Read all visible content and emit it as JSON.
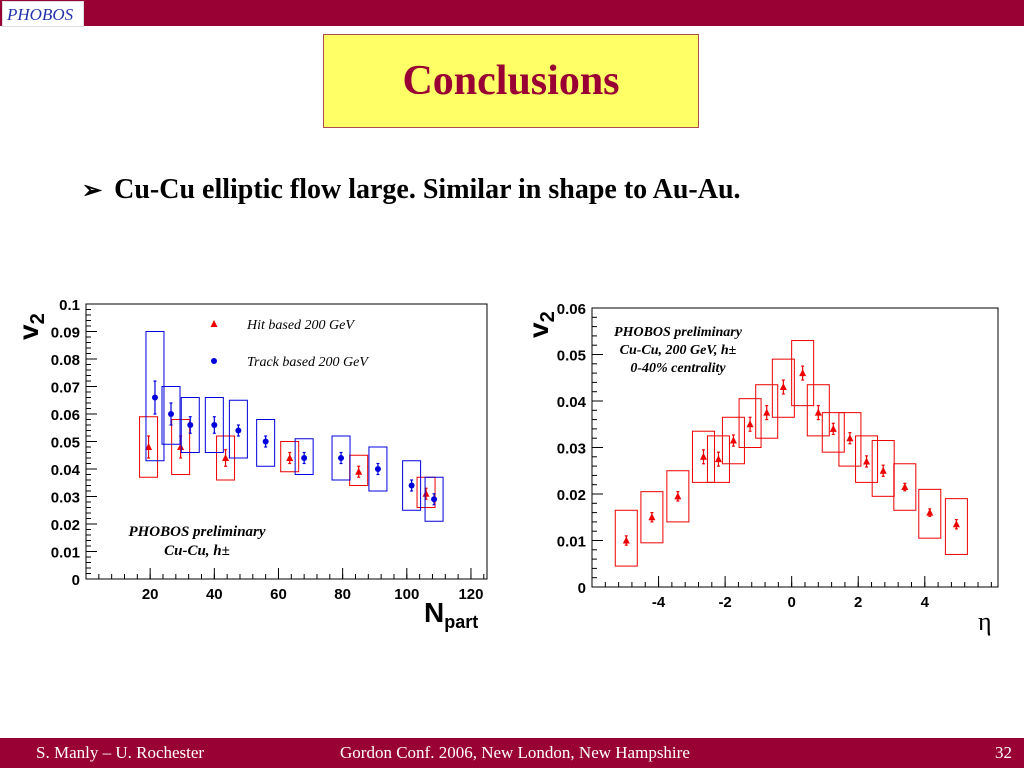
{
  "slide": {
    "logo_text": "PHOBOS",
    "title": "Conclusions",
    "bullet_symbol": "➢",
    "bullet_text": "Cu-Cu elliptic flow large.  Similar in shape to Au-Au.",
    "footer_left": "S. Manly – U. Rochester",
    "footer_center": "Gordon Conf. 2006, New London, New Hampshire",
    "footer_right": "32"
  },
  "colors": {
    "bar": "#990033",
    "title_box": "#ffff66",
    "title_text": "#990033",
    "hit": "#ee0000",
    "track": "#0000dd"
  },
  "chart_data": [
    {
      "type": "scatter",
      "xlabel": "N",
      "xlabel_sub": "part",
      "ylabel": "v",
      "ylabel_sub": "2",
      "xlim": [
        0,
        125
      ],
      "ylim": [
        0,
        0.1
      ],
      "xticks": [
        "20",
        "40",
        "60",
        "80",
        "100",
        "120"
      ],
      "yticks": [
        "0",
        "0.01",
        "0.02",
        "0.03",
        "0.04",
        "0.05",
        "0.06",
        "0.07",
        "0.08",
        "0.09",
        "0.1"
      ],
      "annotation": [
        "PHOBOS preliminary",
        "Cu-Cu, h±"
      ],
      "legend_position": "top-center",
      "series": [
        {
          "name": "Hit based 200 GeV",
          "marker": "triangle",
          "color": "#ee0000",
          "points": [
            {
              "x": 19.5,
              "y": 0.048,
              "err": 0.004,
              "sys_low": 0.037,
              "sys_high": 0.059
            },
            {
              "x": 29.5,
              "y": 0.048,
              "err": 0.004,
              "sys_low": 0.038,
              "sys_high": 0.058
            },
            {
              "x": 43.5,
              "y": 0.044,
              "err": 0.003,
              "sys_low": 0.036,
              "sys_high": 0.052
            },
            {
              "x": 63.5,
              "y": 0.044,
              "err": 0.002,
              "sys_low": 0.039,
              "sys_high": 0.05
            },
            {
              "x": 85,
              "y": 0.039,
              "err": 0.002,
              "sys_low": 0.034,
              "sys_high": 0.045
            },
            {
              "x": 106,
              "y": 0.031,
              "err": 0.002,
              "sys_low": 0.026,
              "sys_high": 0.037
            }
          ]
        },
        {
          "name": "Track based 200 GeV",
          "marker": "circle",
          "color": "#0000dd",
          "points": [
            {
              "x": 21.5,
              "y": 0.066,
              "err": 0.006,
              "sys_low": 0.043,
              "sys_high": 0.09
            },
            {
              "x": 26.5,
              "y": 0.06,
              "err": 0.004,
              "sys_low": 0.049,
              "sys_high": 0.07
            },
            {
              "x": 32.5,
              "y": 0.056,
              "err": 0.003,
              "sys_low": 0.046,
              "sys_high": 0.066
            },
            {
              "x": 40,
              "y": 0.056,
              "err": 0.003,
              "sys_low": 0.046,
              "sys_high": 0.066
            },
            {
              "x": 47.5,
              "y": 0.054,
              "err": 0.002,
              "sys_low": 0.044,
              "sys_high": 0.065
            },
            {
              "x": 56,
              "y": 0.05,
              "err": 0.002,
              "sys_low": 0.041,
              "sys_high": 0.058
            },
            {
              "x": 68,
              "y": 0.044,
              "err": 0.002,
              "sys_low": 0.038,
              "sys_high": 0.051
            },
            {
              "x": 79.5,
              "y": 0.044,
              "err": 0.002,
              "sys_low": 0.036,
              "sys_high": 0.052
            },
            {
              "x": 91,
              "y": 0.04,
              "err": 0.002,
              "sys_low": 0.032,
              "sys_high": 0.048
            },
            {
              "x": 101.5,
              "y": 0.034,
              "err": 0.002,
              "sys_low": 0.025,
              "sys_high": 0.043
            },
            {
              "x": 108.5,
              "y": 0.029,
              "err": 0.002,
              "sys_low": 0.021,
              "sys_high": 0.037
            }
          ]
        }
      ]
    },
    {
      "type": "scatter",
      "xlabel": "η",
      "ylabel": "v",
      "ylabel_sub": "2",
      "xlim": [
        -6,
        6.2
      ],
      "ylim": [
        0,
        0.06
      ],
      "xticks": [
        "-4",
        "-2",
        "0",
        "2",
        "4"
      ],
      "yticks": [
        "0",
        "0.01",
        "0.02",
        "0.03",
        "0.04",
        "0.05",
        "0.06"
      ],
      "annotation": [
        "PHOBOS preliminary",
        "Cu-Cu, 200 GeV, h±",
        "0-40% centrality"
      ],
      "series": [
        {
          "marker": "triangle",
          "color": "#ee0000",
          "points": [
            {
              "x": -4.97,
              "y": 0.01,
              "err": 0.001,
              "sys_low": 0.0045,
              "sys_high": 0.0165
            },
            {
              "x": -4.2,
              "y": 0.015,
              "err": 0.001,
              "sys_low": 0.0095,
              "sys_high": 0.0205
            },
            {
              "x": -3.42,
              "y": 0.0195,
              "err": 0.001,
              "sys_low": 0.014,
              "sys_high": 0.025
            },
            {
              "x": -2.65,
              "y": 0.028,
              "err": 0.0015,
              "sys_low": 0.0225,
              "sys_high": 0.0335
            },
            {
              "x": -2.2,
              "y": 0.0275,
              "err": 0.0015,
              "sys_low": 0.0225,
              "sys_high": 0.0325
            },
            {
              "x": -1.75,
              "y": 0.0315,
              "err": 0.0012,
              "sys_low": 0.0265,
              "sys_high": 0.0365
            },
            {
              "x": -1.25,
              "y": 0.035,
              "err": 0.0015,
              "sys_low": 0.03,
              "sys_high": 0.0405
            },
            {
              "x": -0.75,
              "y": 0.0375,
              "err": 0.0015,
              "sys_low": 0.032,
              "sys_high": 0.0435
            },
            {
              "x": -0.25,
              "y": 0.043,
              "err": 0.0015,
              "sys_low": 0.0365,
              "sys_high": 0.049
            },
            {
              "x": 0.33,
              "y": 0.046,
              "err": 0.0015,
              "sys_low": 0.039,
              "sys_high": 0.053
            },
            {
              "x": 0.8,
              "y": 0.0375,
              "err": 0.0015,
              "sys_low": 0.0325,
              "sys_high": 0.0435
            },
            {
              "x": 1.25,
              "y": 0.034,
              "err": 0.0012,
              "sys_low": 0.029,
              "sys_high": 0.0375
            },
            {
              "x": 1.75,
              "y": 0.032,
              "err": 0.0012,
              "sys_low": 0.026,
              "sys_high": 0.0375
            },
            {
              "x": 2.25,
              "y": 0.027,
              "err": 0.0012,
              "sys_low": 0.0225,
              "sys_high": 0.0325
            },
            {
              "x": 2.75,
              "y": 0.025,
              "err": 0.0012,
              "sys_low": 0.0195,
              "sys_high": 0.0315
            },
            {
              "x": 3.4,
              "y": 0.0215,
              "err": 0.0008,
              "sys_low": 0.0165,
              "sys_high": 0.0265
            },
            {
              "x": 4.15,
              "y": 0.016,
              "err": 0.0008,
              "sys_low": 0.0105,
              "sys_high": 0.021
            },
            {
              "x": 4.95,
              "y": 0.0135,
              "err": 0.001,
              "sys_low": 0.007,
              "sys_high": 0.019
            }
          ]
        }
      ]
    }
  ]
}
